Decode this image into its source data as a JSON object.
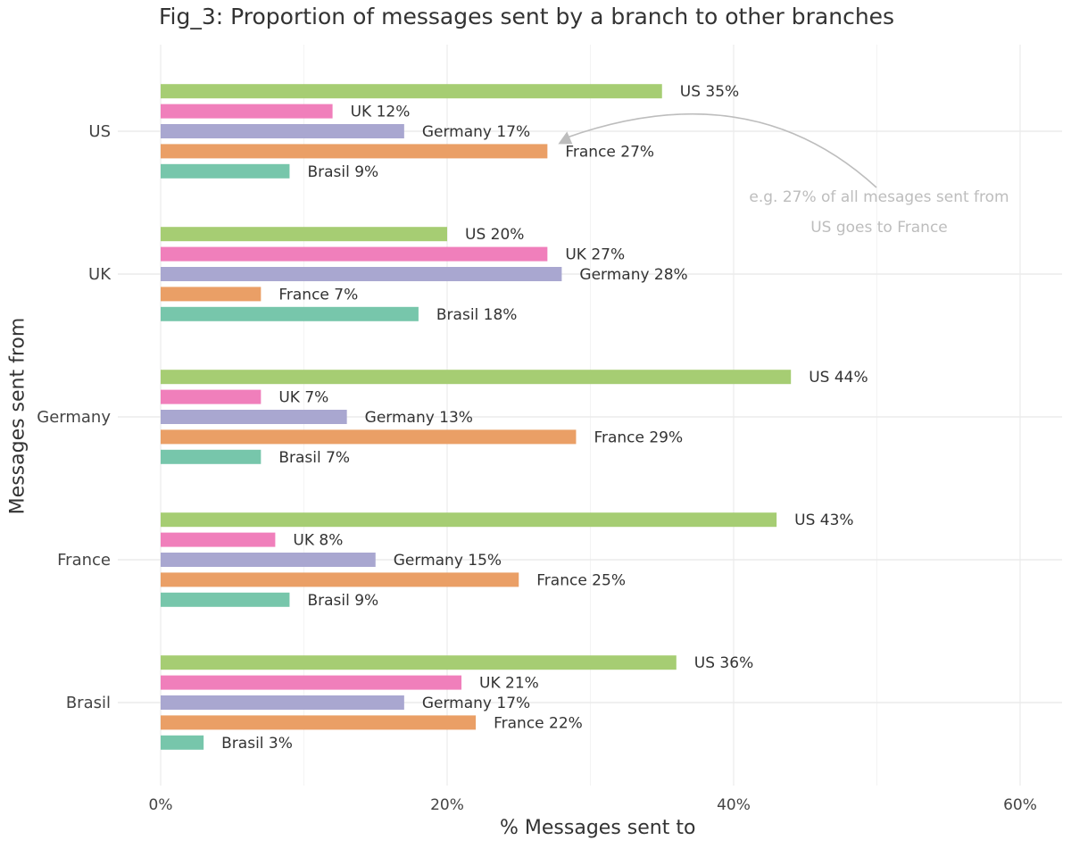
{
  "chart_data": {
    "type": "bar",
    "orientation": "horizontal",
    "title": "Fig_3: Proportion of messages sent by a branch to other branches",
    "xlabel": "% Messages sent to",
    "ylabel": "Messages sent from",
    "xlim": [
      0,
      60
    ],
    "xticks": [
      "0%",
      "20%",
      "40%",
      "60%"
    ],
    "grid": true,
    "legend": "none",
    "categories": [
      "US",
      "UK",
      "Germany",
      "France",
      "Brasil"
    ],
    "series": [
      {
        "name": "US",
        "color": "#a6cd73",
        "values": [
          35,
          20,
          44,
          43,
          36
        ],
        "labels": [
          "US 35%",
          "US 20%",
          "US 44%",
          "US 43%",
          "US 36%"
        ]
      },
      {
        "name": "UK",
        "color": "#f07fbb",
        "values": [
          12,
          27,
          7,
          8,
          21
        ],
        "labels": [
          "UK 12%",
          "UK 27%",
          "UK 7%",
          "UK 8%",
          "UK 21%"
        ]
      },
      {
        "name": "Germany",
        "color": "#a9a7d0",
        "values": [
          17,
          28,
          13,
          15,
          17
        ],
        "labels": [
          "Germany 17%",
          "Germany 28%",
          "Germany 13%",
          "Germany 15%",
          "Germany 17%"
        ]
      },
      {
        "name": "France",
        "color": "#ea9f66",
        "values": [
          27,
          7,
          29,
          25,
          22
        ],
        "labels": [
          "France 27%",
          "France 7%",
          "France 29%",
          "France 25%",
          "France 22%"
        ]
      },
      {
        "name": "Brasil",
        "color": "#77c6ab",
        "values": [
          9,
          18,
          7,
          9,
          3
        ],
        "labels": [
          "Brasil 9%",
          "Brasil 18%",
          "Brasil 7%",
          "Brasil 9%",
          "Brasil 3%"
        ]
      }
    ],
    "annotation": {
      "lines": [
        "e.g. 27% of all mesages sent from",
        "US goes to France"
      ],
      "target_category": "US",
      "target_series": "France",
      "color": "#bdbdbd"
    }
  }
}
